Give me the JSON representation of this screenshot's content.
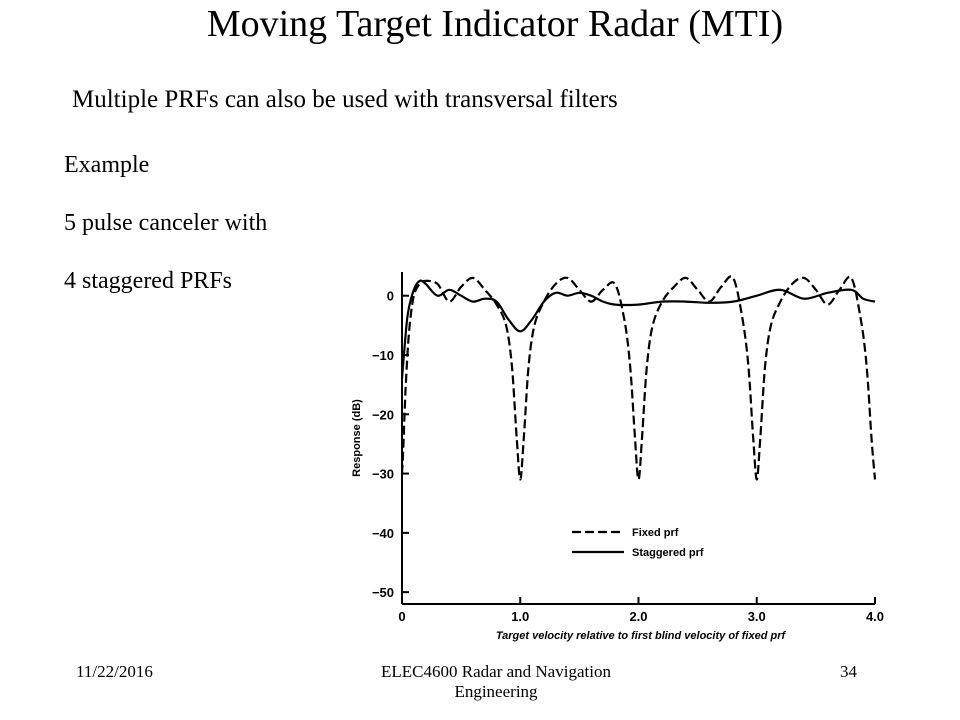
{
  "slide": {
    "title": "Moving Target Indicator Radar (MTI)",
    "subtitle": "Multiple PRFs can also be used with transversal  filters",
    "lines": [
      "Example",
      "5 pulse canceler with",
      "4 staggered PRFs"
    ]
  },
  "footer": {
    "date": "11/22/2016",
    "course": "ELEC4600 Radar and Navigation Engineering",
    "page": "34"
  },
  "chart_data": {
    "type": "line",
    "xlabel": "Target velocity relative to first blind velocity of fixed prf",
    "ylabel": "Response (dB)",
    "xlim": [
      0,
      4.0
    ],
    "ylim": [
      -52,
      4
    ],
    "x_ticks": [
      0,
      1.0,
      2.0,
      3.0,
      4.0
    ],
    "x_tick_labels": [
      "0",
      "1.0",
      "2.0",
      "3.0",
      "4.0"
    ],
    "y_ticks": [
      0,
      -10,
      -20,
      -30,
      -40,
      -50
    ],
    "y_tick_labels": [
      "0",
      "−10",
      "−20",
      "−30",
      "−40",
      "−50"
    ],
    "grid": false,
    "legend_position": "lower-right",
    "series": [
      {
        "name": "Fixed prf",
        "style": "dashed",
        "x": [
          0,
          0.01,
          0.03,
          0.06,
          0.1,
          0.15,
          0.2,
          0.3,
          0.4,
          0.5,
          0.6,
          0.7,
          0.8,
          0.88,
          0.93,
          0.97,
          1.0,
          1.03,
          1.07,
          1.12,
          1.2,
          1.3,
          1.4,
          1.5,
          1.6,
          1.7,
          1.8,
          1.88,
          1.93,
          1.97,
          2.0,
          2.03,
          2.07,
          2.12,
          2.2,
          2.3,
          2.4,
          2.5,
          2.6,
          2.7,
          2.8,
          2.88,
          2.93,
          2.97,
          3.0,
          3.03,
          3.07,
          3.12,
          3.2,
          3.3,
          3.4,
          3.5,
          3.6,
          3.7,
          3.8,
          3.88,
          3.93,
          3.97,
          4.0
        ],
        "y": [
          -30,
          -26,
          -16,
          -6,
          0,
          2,
          2.5,
          2,
          -1,
          1.5,
          3,
          1,
          -1.5,
          -5,
          -12,
          -24,
          -31,
          -24,
          -12,
          -5,
          -1,
          2,
          3,
          1,
          -1,
          1,
          2,
          -4,
          -12,
          -24,
          -31,
          -24,
          -12,
          -5,
          -1,
          1.5,
          3,
          1,
          -1,
          1.5,
          3,
          -4,
          -12,
          -24,
          -31,
          -24,
          -12,
          -5,
          -1,
          2,
          3,
          1,
          -1.5,
          1,
          3,
          -4,
          -12,
          -24,
          -31
        ]
      },
      {
        "name": "Staggered prf",
        "style": "solid",
        "x": [
          0,
          0.02,
          0.05,
          0.1,
          0.15,
          0.2,
          0.3,
          0.4,
          0.5,
          0.6,
          0.7,
          0.8,
          0.9,
          1.0,
          1.1,
          1.2,
          1.3,
          1.4,
          1.5,
          1.6,
          1.7,
          1.8,
          2.0,
          2.2,
          2.4,
          2.6,
          2.8,
          3.0,
          3.2,
          3.4,
          3.6,
          3.8,
          3.9,
          4.0
        ],
        "y": [
          -14,
          -9,
          -3,
          1,
          2.5,
          2,
          0,
          1,
          0,
          -1,
          -0.5,
          -1,
          -4,
          -6,
          -4,
          -1,
          0.5,
          0,
          0.5,
          0,
          -1,
          -1.5,
          -1.5,
          -1,
          -1,
          -1.2,
          -1,
          0,
          1,
          -0.5,
          0.5,
          1,
          -0.5,
          -1
        ]
      }
    ]
  }
}
